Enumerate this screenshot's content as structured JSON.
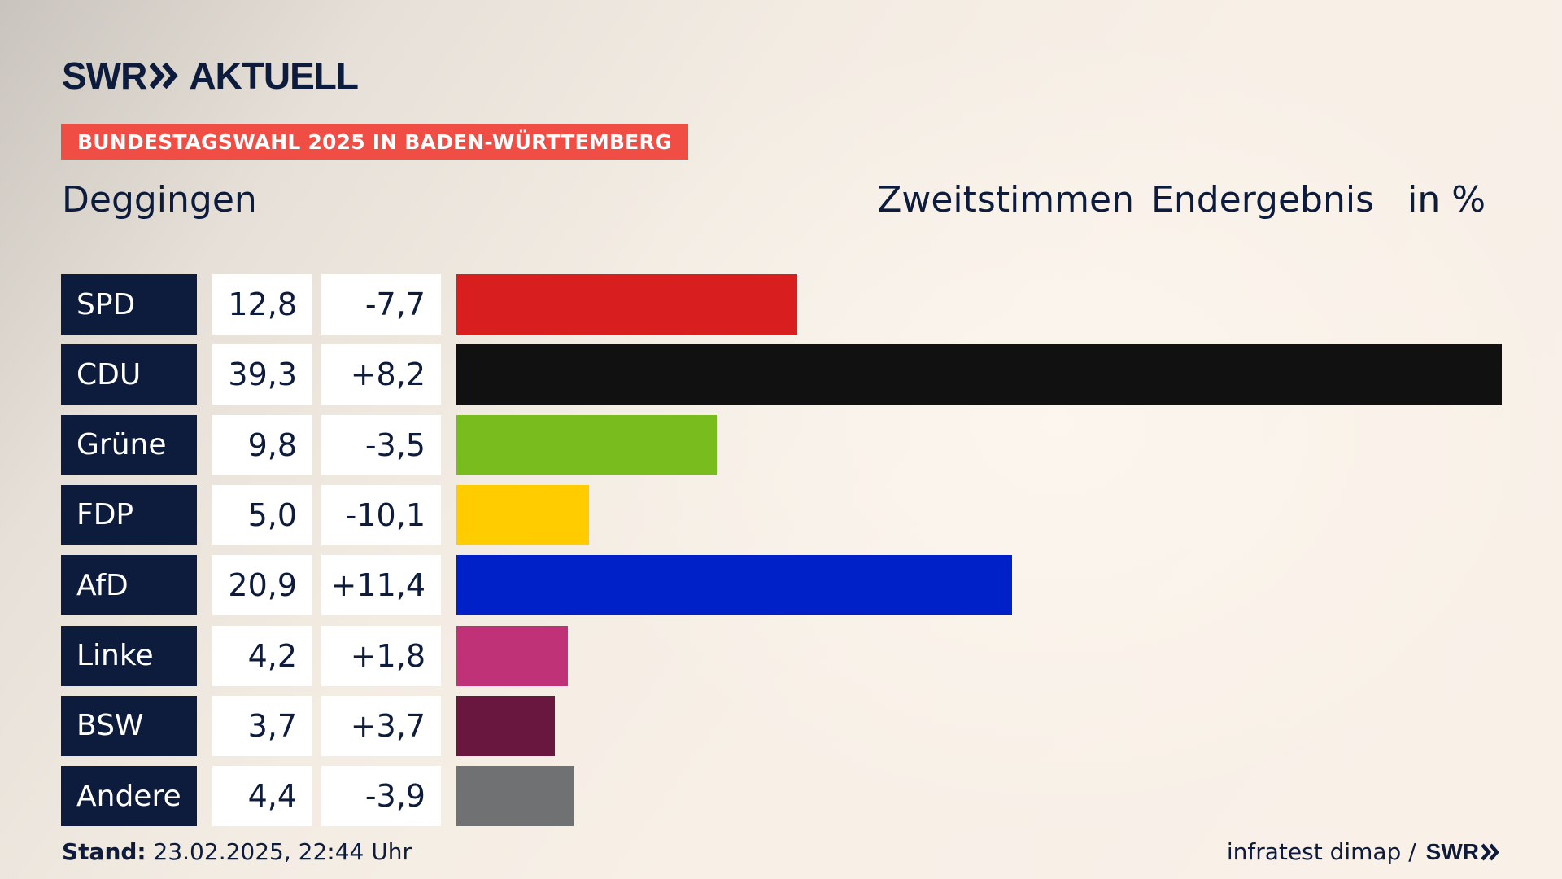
{
  "brand": {
    "logo_left": "SWR",
    "logo_right": "AKTUELL"
  },
  "badge": {
    "text": "BUNDESTAGSWAHL 2025 IN BADEN-WÜRTTEMBERG",
    "color": "#f04e45"
  },
  "place": "Deggingen",
  "header": {
    "vote_type": "Zweitstimmen",
    "result_type": "Endergebnis",
    "unit": "in %"
  },
  "chart_data": {
    "type": "bar",
    "orientation": "horizontal",
    "categories": [
      "SPD",
      "CDU",
      "Grüne",
      "FDP",
      "AfD",
      "Linke",
      "BSW",
      "Andere"
    ],
    "values": [
      12.8,
      39.3,
      9.8,
      5.0,
      20.9,
      4.2,
      3.7,
      4.4
    ],
    "values_label": [
      "12,8",
      "39,3",
      "9,8",
      "5,0",
      "20,9",
      "4,2",
      "3,7",
      "4,4"
    ],
    "changes": [
      -7.7,
      8.2,
      -3.5,
      -10.1,
      11.4,
      1.8,
      3.7,
      -3.9
    ],
    "changes_label": [
      "-7,7",
      "+8,2",
      "-3,5",
      "-10,1",
      "+11,4",
      "+1,8",
      "+3,7",
      "-3,9"
    ],
    "colors": [
      "#d81e1e",
      "#111111",
      "#78bc1e",
      "#ffcc00",
      "#0021c7",
      "#bf3277",
      "#6a1740",
      "#707173"
    ],
    "grid": false,
    "legend": "none"
  },
  "footer": {
    "stand_label": "Stand:",
    "stand_value": "23.02.2025, 22:44 Uhr",
    "source": "infratest dimap /",
    "source_brand": "SWR"
  }
}
